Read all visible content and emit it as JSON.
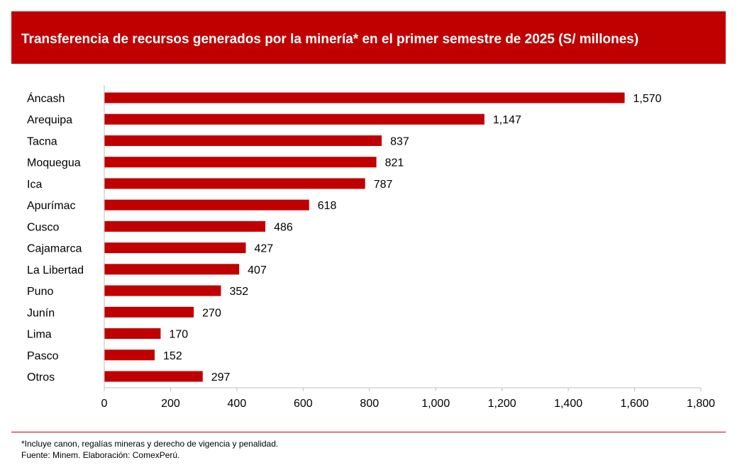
{
  "header": {
    "title": "Transferencia de recursos generados por la minería* en el primer semestre de 2025 (S/ millones)"
  },
  "chart_data": {
    "type": "bar",
    "orientation": "horizontal",
    "title": "Transferencia de recursos generados por la minería* en el primer semestre de 2025 (S/ millones)",
    "categories": [
      "Áncash",
      "Arequipa",
      "Tacna",
      "Moquegua",
      "Ica",
      "Apurímac",
      "Cusco",
      "Cajamarca",
      "La Libertad",
      "Puno",
      "Junín",
      "Lima",
      "Pasco",
      "Otros"
    ],
    "values": [
      1570,
      1147,
      837,
      821,
      787,
      618,
      486,
      427,
      407,
      352,
      270,
      170,
      152,
      297
    ],
    "value_labels": [
      "1,570",
      "1,147",
      "837",
      "821",
      "787",
      "618",
      "486",
      "427",
      "407",
      "352",
      "270",
      "170",
      "152",
      "297"
    ],
    "xlim": [
      0,
      1800
    ],
    "x_ticks": [
      0,
      200,
      400,
      600,
      800,
      1000,
      1200,
      1400,
      1600,
      1800
    ],
    "x_tick_labels": [
      "0",
      "200",
      "400",
      "600",
      "800",
      "1,000",
      "1,200",
      "1,400",
      "1,600",
      "1,800"
    ],
    "grid": false,
    "bar_color": "#c00000"
  },
  "footer": {
    "note": "*Incluye canon, regalías mineras y derecho de vigencia y penalidad.",
    "source": "Fuente: Minem. Elaboración: ComexPerú."
  },
  "colors": {
    "accent": "#c00000",
    "title_text": "#ffffff",
    "axis": "#bfbfbf"
  }
}
